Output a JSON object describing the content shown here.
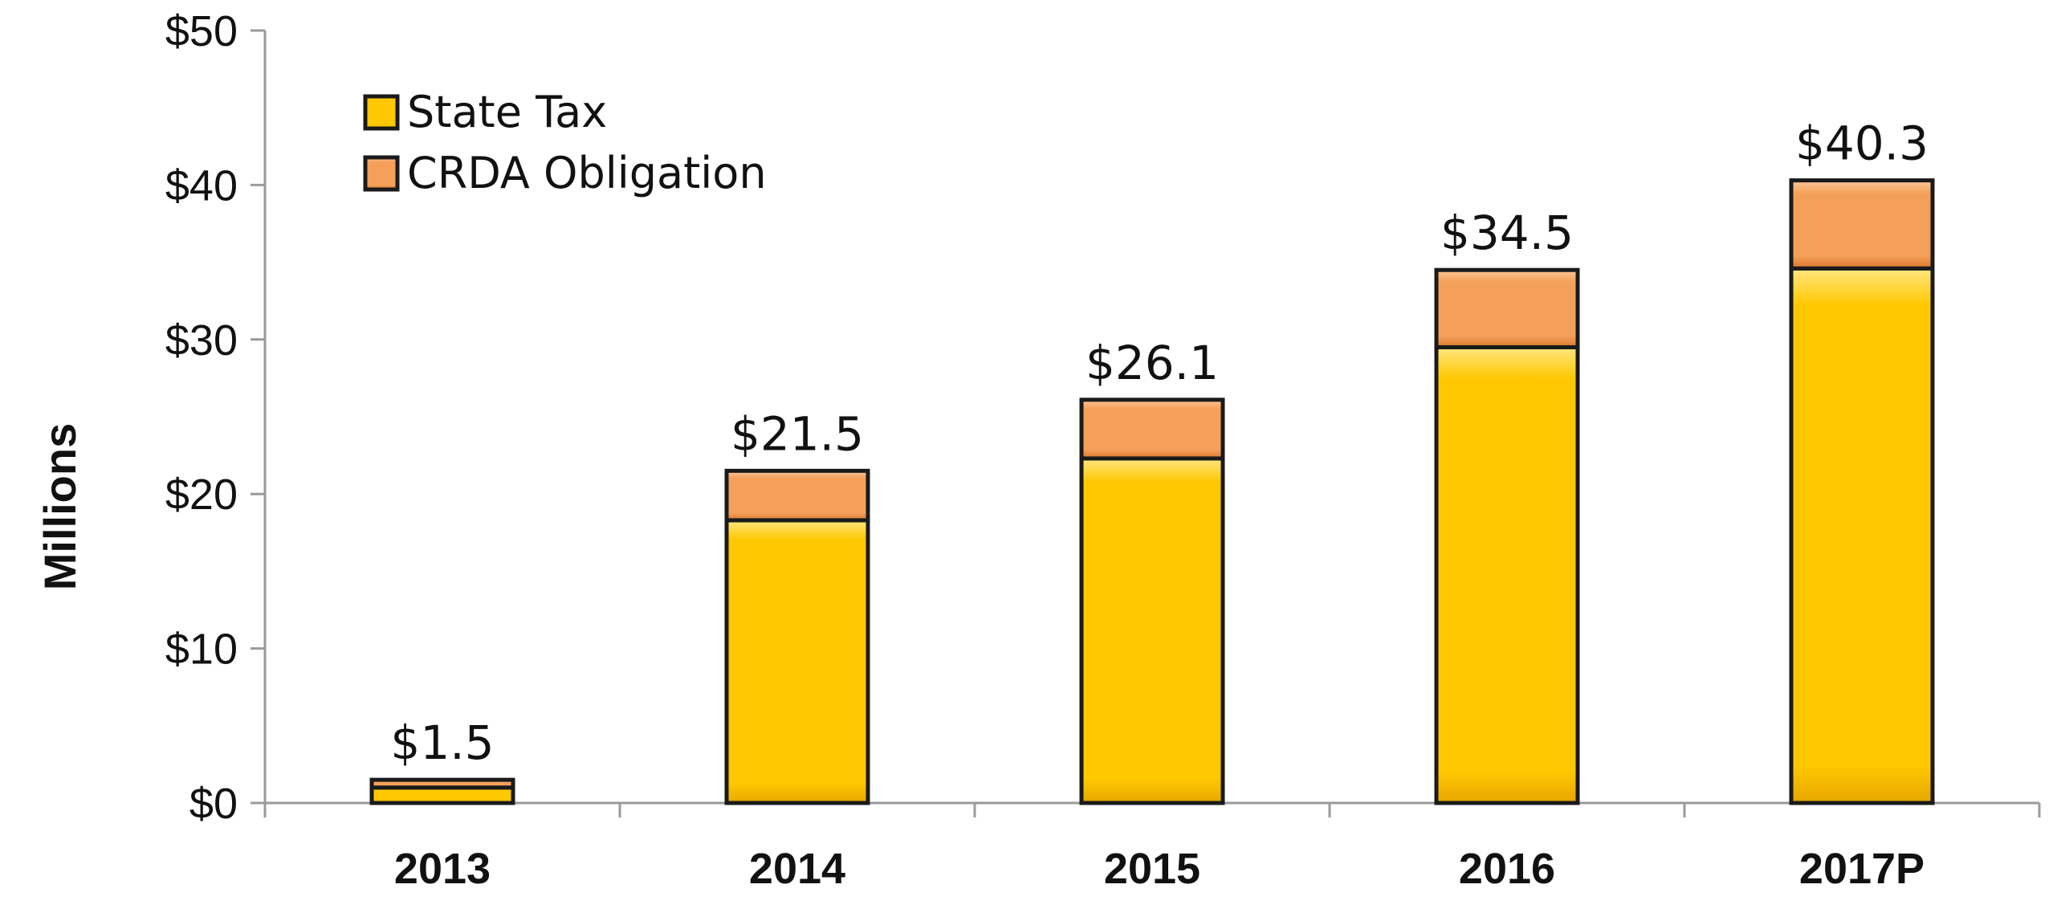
{
  "chart_data": {
    "type": "bar",
    "stacked": true,
    "ylabel": "Millions",
    "xlabel": "",
    "ylim": [
      0,
      50
    ],
    "y_ticks": [
      {
        "value": 0,
        "label": "$0"
      },
      {
        "value": 10,
        "label": "$10"
      },
      {
        "value": 20,
        "label": "$20"
      },
      {
        "value": 30,
        "label": "$30"
      },
      {
        "value": 40,
        "label": "$40"
      },
      {
        "value": 50,
        "label": "$50"
      }
    ],
    "categories": [
      "2013",
      "2014",
      "2015",
      "2016",
      "2017P"
    ],
    "series": [
      {
        "name": "State Tax",
        "values": [
          1.0,
          18.3,
          22.3,
          29.5,
          34.6
        ],
        "color": "#FFC800",
        "edge_color": "#E0A800"
      },
      {
        "name": "CRDA Obligation",
        "values": [
          0.5,
          3.2,
          3.8,
          5.0,
          5.7
        ],
        "color": "#F5A05A",
        "edge_color": "#D9782E"
      }
    ],
    "totals": [
      1.5,
      21.5,
      26.1,
      34.5,
      40.3
    ],
    "total_labels": [
      "$1.5",
      "$21.5",
      "$26.1",
      "$34.5",
      "$40.3"
    ],
    "legend_position": "top-left",
    "grid": false
  }
}
